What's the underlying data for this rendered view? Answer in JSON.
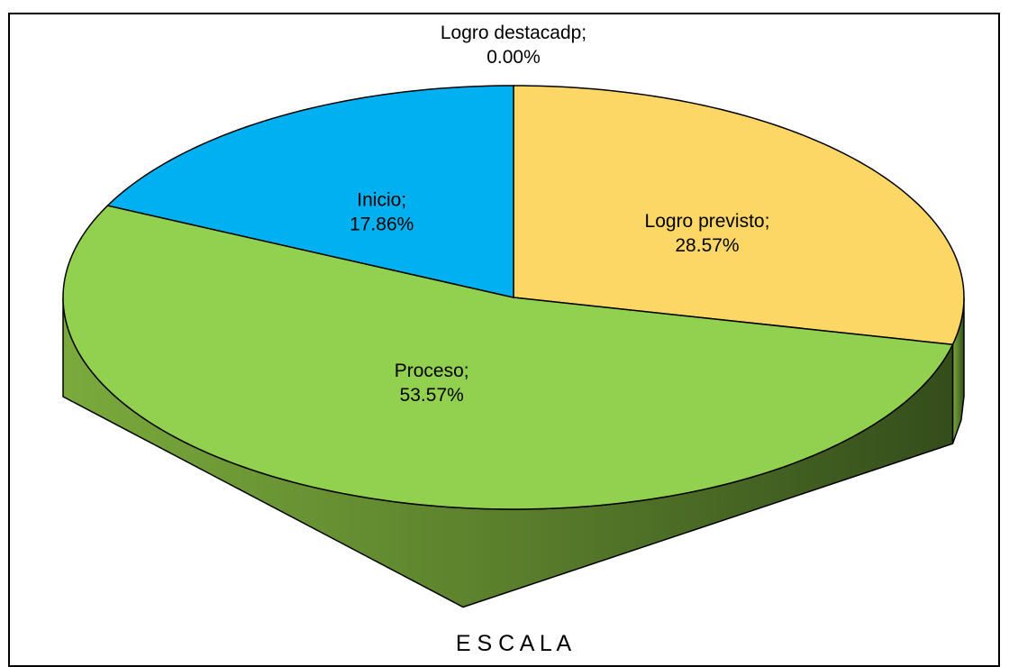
{
  "chart_data": {
    "type": "pie3d",
    "title": "E S C A L A",
    "categories": [
      "Logro destacadp;",
      "Logro previsto;",
      "Proceso;",
      "Inicio;"
    ],
    "values": [
      0,
      28.57,
      53.57,
      17.86
    ],
    "value_labels": [
      "0.00%",
      "28.57%",
      "53.57%",
      "17.86%"
    ],
    "colors": [
      "#4472c4",
      "#fcd766",
      "#92d050",
      "#00b0f0"
    ]
  }
}
